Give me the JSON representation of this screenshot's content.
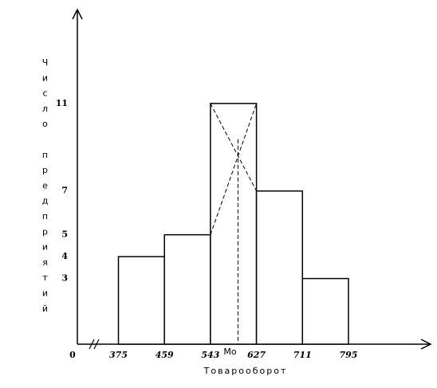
{
  "chart_data": {
    "type": "histogram",
    "x_label": "Товарооборот",
    "y_label": "Число предприятий",
    "origin_label": "0",
    "mode_label": "Мо",
    "mode_x": 593.4,
    "bins": [
      375,
      459,
      543,
      627,
      711,
      795
    ],
    "values": [
      4,
      5,
      11,
      7,
      3
    ],
    "color": "#ffffff",
    "xlim": [
      300,
      945
    ],
    "ylim": [
      0,
      15
    ],
    "xticks": [
      375,
      459,
      543,
      627,
      711,
      795
    ],
    "yticks": [
      3,
      4,
      5,
      7,
      11
    ],
    "grid": false
  }
}
